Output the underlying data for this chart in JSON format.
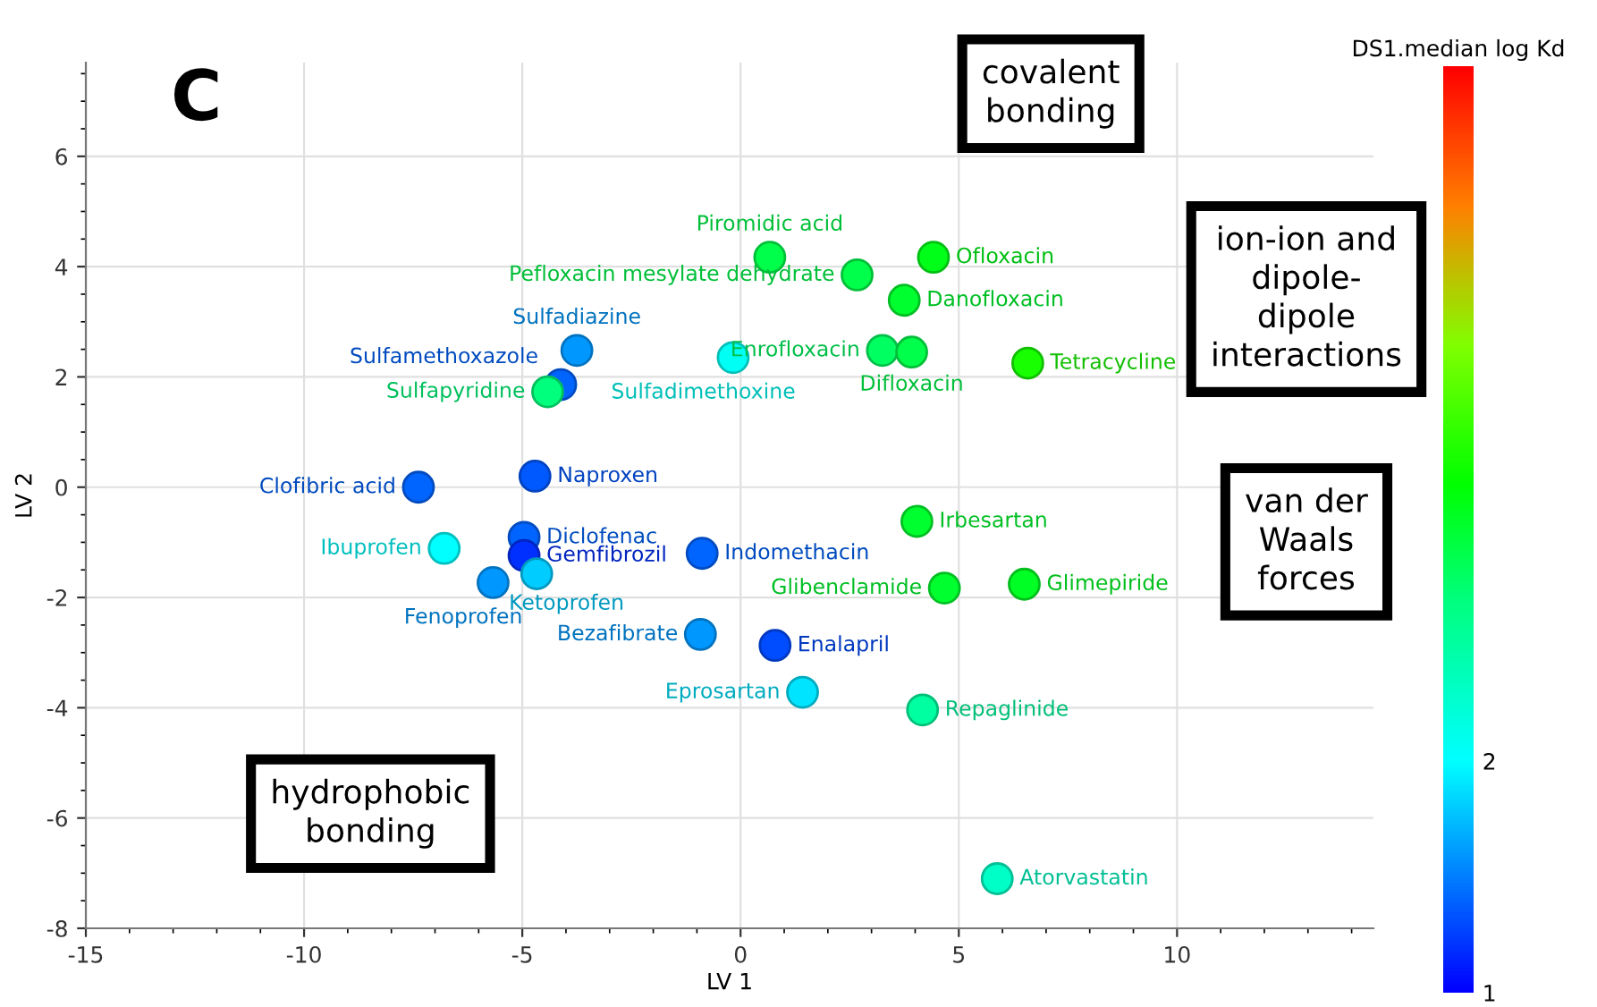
{
  "chart_data": {
    "type": "scatter",
    "xlabel": "LV 1",
    "ylabel": "LV 2",
    "clabel": "DS1.median log Kd",
    "xlim": [
      -15,
      14.5
    ],
    "ylim": [
      -8,
      7.7
    ],
    "xticks": [
      -15,
      -10,
      -5,
      0,
      5,
      10
    ],
    "yticks": [
      -8,
      -6,
      -4,
      -2,
      0,
      2,
      4,
      6
    ],
    "clim": [
      1,
      5
    ],
    "cticks": [
      1,
      2
    ],
    "grid": true,
    "marker": "circle",
    "x": [
      0.67,
      2.67,
      4.42,
      3.75,
      3.25,
      3.92,
      6.58,
      -0.17,
      -3.75,
      -4.12,
      -4.42,
      -7.38,
      -4.71,
      -4.96,
      -4.96,
      -6.79,
      -4.67,
      -5.67,
      -0.88,
      -0.92,
      0.79,
      1.42,
      4.17,
      5.88,
      4.04,
      4.67,
      6.5
    ],
    "values": [
      4.17,
      3.85,
      4.17,
      3.39,
      2.48,
      2.45,
      2.25,
      2.35,
      2.48,
      1.86,
      1.73,
      0.0,
      0.2,
      -0.91,
      -1.24,
      -1.11,
      -1.57,
      -1.73,
      -1.2,
      -2.67,
      -2.87,
      -3.72,
      -4.04,
      -7.1,
      -0.62,
      -1.83,
      -1.76
    ],
    "cvalues": [
      2.9,
      2.9,
      3.1,
      3.0,
      2.8,
      2.9,
      3.3,
      2.05,
      1.6,
      1.4,
      2.7,
      1.4,
      1.35,
      1.4,
      1.2,
      2.0,
      1.8,
      1.6,
      1.4,
      1.6,
      1.3,
      1.9,
      2.5,
      2.3,
      3.0,
      3.0,
      3.05
    ],
    "annotations": [
      {
        "text": "Piromidic acid",
        "x": 0.67,
        "y": 4.17
      },
      {
        "text": "Pefloxacin mesylate dehydrate",
        "x": 2.67,
        "y": 3.85
      },
      {
        "text": "Ofloxacin",
        "x": 4.42,
        "y": 4.17
      },
      {
        "text": "Danofloxacin",
        "x": 3.75,
        "y": 3.39
      },
      {
        "text": "Enrofloxacin",
        "x": 3.25,
        "y": 2.48
      },
      {
        "text": "Difloxacin",
        "x": 3.92,
        "y": 2.45
      },
      {
        "text": "Tetracycline",
        "x": 6.58,
        "y": 2.25
      },
      {
        "text": "Sulfadimethoxine",
        "x": -0.17,
        "y": 2.35
      },
      {
        "text": "Sulfadiazine",
        "x": -3.75,
        "y": 2.48
      },
      {
        "text": "Sulfamethoxazole",
        "x": -4.12,
        "y": 1.86
      },
      {
        "text": "Sulfapyridine",
        "x": -4.42,
        "y": 1.73
      },
      {
        "text": "Clofibric acid",
        "x": -7.38,
        "y": 0.0
      },
      {
        "text": "Naproxen",
        "x": -4.71,
        "y": 0.2
      },
      {
        "text": "Diclofenac",
        "x": -4.96,
        "y": -0.91
      },
      {
        "text": "Gemfibrozil",
        "x": -4.96,
        "y": -1.24
      },
      {
        "text": "Ibuprofen",
        "x": -6.79,
        "y": -1.11
      },
      {
        "text": "Ketoprofen",
        "x": -4.67,
        "y": -1.57
      },
      {
        "text": "Fenoprofen",
        "x": -5.67,
        "y": -1.73
      },
      {
        "text": "Indomethacin",
        "x": -0.88,
        "y": -1.2
      },
      {
        "text": "Bezafibrate",
        "x": -0.92,
        "y": -2.67
      },
      {
        "text": "Enalapril",
        "x": 0.79,
        "y": -2.87
      },
      {
        "text": "Eprosartan",
        "x": 1.42,
        "y": -3.72
      },
      {
        "text": "Repaglinide",
        "x": 4.17,
        "y": -4.04
      },
      {
        "text": "Atorvastatin",
        "x": 5.88,
        "y": -7.1
      },
      {
        "text": "Irbesartan",
        "x": 4.04,
        "y": -0.62
      },
      {
        "text": "Glibenclamide",
        "x": 4.67,
        "y": -1.83
      },
      {
        "text": "Glimepiride",
        "x": 6.5,
        "y": -1.76
      },
      "C",
      "covalent\nbonding",
      "ion-ion and\ndipole-\ndipole\ninteractions",
      "van der\nWaals\nforces",
      "hydrophobic\nbonding"
    ]
  }
}
